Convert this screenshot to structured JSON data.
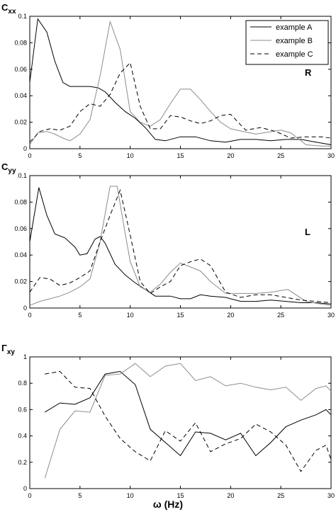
{
  "figure": {
    "xlabel": "ω (Hz)",
    "legend": [
      "example A",
      "example B",
      "example C"
    ],
    "colors": {
      "A": "#000000",
      "B": "#8c8c8c",
      "C": "#000000"
    }
  },
  "chart_data": [
    {
      "type": "line",
      "ylabel": "C",
      "ylabel_sub": "xx",
      "annotation": "R",
      "xlim": [
        0,
        30
      ],
      "ylim": [
        0,
        0.1
      ],
      "xticks": [
        "0",
        "5",
        "10",
        "15",
        "20",
        "25",
        "30"
      ],
      "yticks": [
        "0",
        "0.02",
        "0.04",
        "0.06",
        "0.08",
        "0.1"
      ],
      "legend_position": "top-right",
      "series": [
        {
          "name": "example A",
          "style": "solid",
          "color": "#000000",
          "x": [
            0,
            0.8,
            1.7,
            2.5,
            3.3,
            4.0,
            5.0,
            6.0,
            6.8,
            7.5,
            8.5,
            9.5,
            10.5,
            11.5,
            12.5,
            13.5,
            15.0,
            16.5,
            18.0,
            19.5,
            21.0,
            22.5,
            24.0,
            25.5,
            27.0,
            28.5,
            30.0
          ],
          "y": [
            0.05,
            0.098,
            0.088,
            0.066,
            0.05,
            0.047,
            0.047,
            0.047,
            0.046,
            0.043,
            0.035,
            0.028,
            0.023,
            0.016,
            0.007,
            0.006,
            0.009,
            0.009,
            0.006,
            0.005,
            0.007,
            0.007,
            0.006,
            0.007,
            0.007,
            0.005,
            0.003
          ]
        },
        {
          "name": "example B",
          "style": "solid",
          "color": "#8c8c8c",
          "x": [
            0,
            0.8,
            1.7,
            2.5,
            3.3,
            4.0,
            5.0,
            6.0,
            7.0,
            8.0,
            9.0,
            10.0,
            11.0,
            12.0,
            13.0,
            14.0,
            15.0,
            16.0,
            17.0,
            18.0,
            19.0,
            20.0,
            22.5,
            25.0,
            26.0,
            27.5,
            29.0,
            30.0
          ],
          "y": [
            0.003,
            0.012,
            0.013,
            0.011,
            0.008,
            0.006,
            0.011,
            0.022,
            0.055,
            0.096,
            0.075,
            0.028,
            0.02,
            0.017,
            0.022,
            0.034,
            0.045,
            0.045,
            0.037,
            0.028,
            0.02,
            0.015,
            0.011,
            0.014,
            0.012,
            0.003,
            0.002,
            0.002
          ]
        },
        {
          "name": "example C",
          "style": "dashed",
          "color": "#000000",
          "x": [
            0,
            1.0,
            2.0,
            3.0,
            4.0,
            5.0,
            6.0,
            7.0,
            8.0,
            9.0,
            10.0,
            11.0,
            12.0,
            13.0,
            14.0,
            15.0,
            16.0,
            17.0,
            18.0,
            19.0,
            20.0,
            21.5,
            23.0,
            24.5,
            26.0,
            27.5,
            29.0,
            30.0
          ],
          "y": [
            0.005,
            0.013,
            0.015,
            0.014,
            0.017,
            0.028,
            0.034,
            0.032,
            0.041,
            0.057,
            0.065,
            0.032,
            0.015,
            0.015,
            0.025,
            0.024,
            0.021,
            0.019,
            0.021,
            0.025,
            0.026,
            0.014,
            0.016,
            0.013,
            0.008,
            0.009,
            0.009,
            0.008
          ]
        }
      ]
    },
    {
      "type": "line",
      "ylabel": "C",
      "ylabel_sub": "yy",
      "annotation": "L",
      "xlim": [
        0,
        30
      ],
      "ylim": [
        0,
        0.1
      ],
      "xticks": [
        "0",
        "5",
        "10",
        "15",
        "20",
        "25",
        "30"
      ],
      "yticks": [
        "0",
        "0.02",
        "0.04",
        "0.06",
        "0.08",
        "0.1"
      ],
      "series": [
        {
          "name": "example A",
          "style": "solid",
          "color": "#000000",
          "x": [
            0,
            0.9,
            1.7,
            2.5,
            3.5,
            4.5,
            5.0,
            5.7,
            6.5,
            7.0,
            7.5,
            8.5,
            9.5,
            10.5,
            11.5,
            12.5,
            14.0,
            15.0,
            16.0,
            17.0,
            18.0,
            19.5,
            21.0,
            22.5,
            24.0,
            25.5,
            27.0,
            28.5,
            30.0
          ],
          "y": [
            0.05,
            0.091,
            0.07,
            0.056,
            0.053,
            0.046,
            0.04,
            0.041,
            0.052,
            0.054,
            0.049,
            0.033,
            0.025,
            0.019,
            0.014,
            0.009,
            0.009,
            0.007,
            0.007,
            0.01,
            0.009,
            0.008,
            0.005,
            0.005,
            0.006,
            0.005,
            0.004,
            0.004,
            0.003
          ]
        },
        {
          "name": "example B",
          "style": "solid",
          "color": "#8c8c8c",
          "x": [
            0,
            1.0,
            2.0,
            3.0,
            4.0,
            5.0,
            6.0,
            7.0,
            8.0,
            8.7,
            9.3,
            10.0,
            11.0,
            12.0,
            13.0,
            14.0,
            15.0,
            16.0,
            17.0,
            18.0,
            19.5,
            21.0,
            22.5,
            24.0,
            25.7,
            27.5,
            29.0,
            30.0
          ],
          "y": [
            0.002,
            0.005,
            0.007,
            0.009,
            0.012,
            0.016,
            0.022,
            0.05,
            0.092,
            0.092,
            0.065,
            0.035,
            0.016,
            0.012,
            0.018,
            0.027,
            0.034,
            0.031,
            0.028,
            0.02,
            0.011,
            0.011,
            0.011,
            0.012,
            0.014,
            0.005,
            0.003,
            0.002
          ]
        },
        {
          "name": "example C",
          "style": "dashed",
          "color": "#000000",
          "x": [
            0,
            1.0,
            2.0,
            3.0,
            4.0,
            5.0,
            6.0,
            7.0,
            8.0,
            9.0,
            10.0,
            11.0,
            12.0,
            13.0,
            14.0,
            15.0,
            16.0,
            17.0,
            18.0,
            19.5,
            21.0,
            22.5,
            24.0,
            25.5,
            27.0,
            28.5,
            30.0
          ],
          "y": [
            0.012,
            0.023,
            0.022,
            0.017,
            0.019,
            0.023,
            0.028,
            0.05,
            0.07,
            0.089,
            0.055,
            0.02,
            0.011,
            0.016,
            0.02,
            0.032,
            0.035,
            0.037,
            0.032,
            0.012,
            0.008,
            0.01,
            0.01,
            0.008,
            0.006,
            0.005,
            0.004
          ]
        }
      ]
    },
    {
      "type": "line",
      "ylabel": "Γ",
      "ylabel_sub": "xy",
      "xlim": [
        0,
        30
      ],
      "ylim": [
        0,
        1
      ],
      "xticks": [
        "0",
        "5",
        "10",
        "15",
        "20",
        "25",
        "30"
      ],
      "yticks": [
        "0",
        "0.2",
        "0.4",
        "0.6",
        "0.8",
        "1"
      ],
      "series": [
        {
          "name": "example A",
          "style": "solid",
          "color": "#000000",
          "x": [
            1.5,
            3.0,
            4.5,
            6.0,
            7.5,
            9.0,
            10.5,
            12.0,
            13.5,
            15.0,
            16.5,
            18.0,
            19.5,
            21.0,
            22.5,
            24.0,
            25.5,
            27.0,
            28.5,
            29.5,
            30.0
          ],
          "y": [
            0.58,
            0.65,
            0.64,
            0.69,
            0.87,
            0.89,
            0.79,
            0.45,
            0.35,
            0.25,
            0.43,
            0.42,
            0.37,
            0.42,
            0.25,
            0.35,
            0.47,
            0.52,
            0.56,
            0.6,
            0.56
          ]
        },
        {
          "name": "example B",
          "style": "solid",
          "color": "#8c8c8c",
          "x": [
            1.5,
            3.0,
            4.5,
            6.0,
            7.5,
            9.0,
            10.5,
            12.0,
            13.5,
            15.0,
            16.5,
            18.0,
            19.5,
            21.0,
            22.5,
            24.0,
            25.5,
            27.0,
            28.5,
            29.5,
            30.0
          ],
          "y": [
            0.08,
            0.45,
            0.59,
            0.58,
            0.86,
            0.87,
            0.95,
            0.85,
            0.93,
            0.95,
            0.82,
            0.85,
            0.78,
            0.8,
            0.77,
            0.75,
            0.77,
            0.67,
            0.76,
            0.78,
            0.74
          ]
        },
        {
          "name": "example C",
          "style": "dashed",
          "color": "#000000",
          "x": [
            1.5,
            3.0,
            4.5,
            6.0,
            7.5,
            9.0,
            10.5,
            12.0,
            13.5,
            15.0,
            16.5,
            18.0,
            19.5,
            21.0,
            22.5,
            24.0,
            25.5,
            27.0,
            28.5,
            29.5,
            30.0
          ],
          "y": [
            0.87,
            0.89,
            0.77,
            0.76,
            0.55,
            0.38,
            0.28,
            0.21,
            0.44,
            0.36,
            0.5,
            0.28,
            0.34,
            0.38,
            0.49,
            0.43,
            0.33,
            0.13,
            0.29,
            0.33,
            0.22
          ]
        }
      ]
    }
  ]
}
